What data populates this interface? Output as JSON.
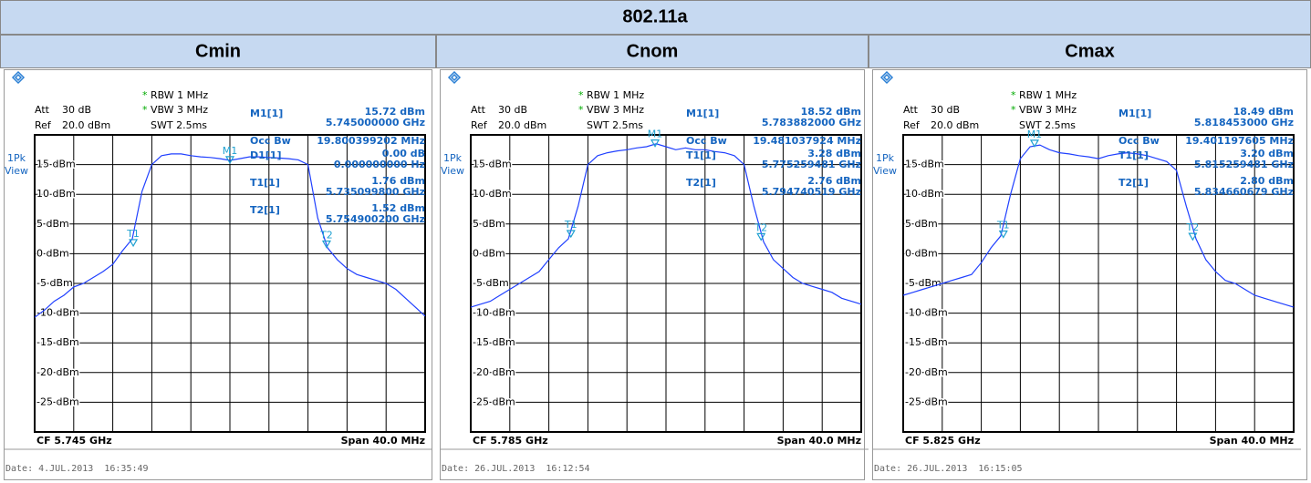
{
  "table": {
    "title": "802.11a",
    "columns": [
      "Cmin",
      "Cnom",
      "Cmax"
    ]
  },
  "chart_data": [
    {
      "type": "line",
      "trace_mode": [
        "1Pk",
        "View"
      ],
      "flag": "*",
      "att_label": "Att",
      "att": "30 dB",
      "ref_label": "Ref",
      "ref": "20.0 dBm",
      "rbw": "RBW 1 MHz",
      "vbw": "VBW 3 MHz",
      "swt": "SWT 2.5ms",
      "cf": "CF 5.745 GHz",
      "span": "Span 40.0 MHz",
      "date": "Date: 4.JUL.2013  16:35:49",
      "xlim": [
        5.725,
        5.765
      ],
      "ylim": [
        -30,
        20
      ],
      "grid": true,
      "color": "#2040ff",
      "yticks": [
        {
          "value": 15,
          "label": "15 dBm"
        },
        {
          "value": 10,
          "label": "10 dBm"
        },
        {
          "value": 5,
          "label": "5 dBm"
        },
        {
          "value": 0,
          "label": "0 dBm"
        },
        {
          "value": -5,
          "label": "-5 dBm"
        },
        {
          "value": -10,
          "label": "-10 dBm"
        },
        {
          "value": -15,
          "label": "-15 dBm"
        },
        {
          "value": -20,
          "label": "-20 dBm"
        },
        {
          "value": -25,
          "label": "-25 dBm"
        }
      ],
      "x": [
        5.725,
        5.726,
        5.727,
        5.728,
        5.729,
        5.73,
        5.731,
        5.732,
        5.733,
        5.734,
        5.735,
        5.736,
        5.737,
        5.738,
        5.739,
        5.74,
        5.741,
        5.742,
        5.743,
        5.744,
        5.745,
        5.746,
        5.747,
        5.748,
        5.749,
        5.75,
        5.751,
        5.752,
        5.753,
        5.754,
        5.755,
        5.756,
        5.757,
        5.758,
        5.759,
        5.76,
        5.761,
        5.762,
        5.763,
        5.764,
        5.765
      ],
      "values": [
        -10.7,
        -9.5,
        -8,
        -7,
        -5.6,
        -5,
        -4,
        -3,
        -1.8,
        0.5,
        2.5,
        10.5,
        15,
        16.5,
        16.8,
        16.8,
        16.5,
        16.3,
        16.2,
        16,
        15.7,
        16,
        16.3,
        16.3,
        16.2,
        16.1,
        16,
        15.8,
        15,
        6,
        1,
        -1,
        -2.5,
        -3.5,
        -4,
        -4.5,
        -5,
        -6,
        -7.5,
        -9,
        -10.5
      ],
      "markers": [
        {
          "label": "M1",
          "x": 5.745,
          "y": 15.72
        },
        {
          "label": "T1",
          "x": 5.7350998,
          "y": 1.76
        },
        {
          "label": "T2",
          "x": 5.7549002,
          "y": 1.52
        }
      ],
      "marker_table": [
        {
          "label": "M1[1]",
          "value": "15.72 dBm",
          "sub": "5.745000000 GHz"
        },
        {
          "label": "Occ Bw",
          "value": "19.800399202 MHz"
        },
        {
          "label": "D1[1]",
          "value": "0.00 dB",
          "sub": "0.000000000 Hz"
        },
        {
          "label": "T1[1]",
          "value": "1.76 dBm",
          "sub": "5.735099800 GHz"
        },
        {
          "label": "T2[1]",
          "value": "1.52 dBm",
          "sub": "5.754900200 GHz"
        }
      ]
    },
    {
      "type": "line",
      "trace_mode": [
        "1Pk",
        "View"
      ],
      "flag": "*",
      "att_label": "Att",
      "att": "30 dB",
      "ref_label": "Ref",
      "ref": "20.0 dBm",
      "rbw": "RBW 1 MHz",
      "vbw": "VBW 3 MHz",
      "swt": "SWT 2.5ms",
      "cf": "CF 5.785 GHz",
      "span": "Span 40.0 MHz",
      "date": "Date: 26.JUL.2013  16:12:54",
      "xlim": [
        5.765,
        5.805
      ],
      "ylim": [
        -30,
        20
      ],
      "grid": true,
      "color": "#2040ff",
      "yticks": [
        {
          "value": 15,
          "label": "15 dBm"
        },
        {
          "value": 10,
          "label": "10 dBm"
        },
        {
          "value": 5,
          "label": "5 dBm"
        },
        {
          "value": 0,
          "label": "0 dBm"
        },
        {
          "value": -5,
          "label": "-5 dBm"
        },
        {
          "value": -10,
          "label": "-10 dBm"
        },
        {
          "value": -15,
          "label": "-15 dBm"
        },
        {
          "value": -20,
          "label": "-20 dBm"
        },
        {
          "value": -25,
          "label": "-25 dBm"
        }
      ],
      "x": [
        5.765,
        5.766,
        5.767,
        5.768,
        5.769,
        5.77,
        5.771,
        5.772,
        5.773,
        5.774,
        5.775,
        5.776,
        5.777,
        5.778,
        5.779,
        5.78,
        5.781,
        5.782,
        5.783,
        5.784,
        5.785,
        5.786,
        5.787,
        5.788,
        5.789,
        5.79,
        5.791,
        5.792,
        5.793,
        5.794,
        5.795,
        5.796,
        5.797,
        5.798,
        5.799,
        5.8,
        5.801,
        5.802,
        5.803,
        5.804,
        5.805
      ],
      "values": [
        -9,
        -8.5,
        -8,
        -7,
        -6,
        -5,
        -4,
        -3,
        -1,
        1,
        2.5,
        8,
        15,
        16.5,
        17,
        17.3,
        17.5,
        17.8,
        18,
        18.5,
        18,
        17.5,
        17.8,
        17.5,
        17.5,
        17.2,
        17,
        16.5,
        15,
        8,
        2,
        -1,
        -2.5,
        -4,
        -5,
        -5.5,
        -6,
        -6.5,
        -7.5,
        -8,
        -8.5
      ],
      "markers": [
        {
          "label": "M1",
          "x": 5.783882,
          "y": 18.52
        },
        {
          "label": "T1",
          "x": 5.775259481,
          "y": 3.28
        },
        {
          "label": "T2",
          "x": 5.794740519,
          "y": 2.76
        }
      ],
      "marker_table": [
        {
          "label": "M1[1]",
          "value": "18.52 dBm",
          "sub": "5.783882000 GHz"
        },
        {
          "label": "Occ Bw",
          "value": "19.481037924 MHz"
        },
        {
          "label": "T1[1]",
          "value": "3.28 dBm",
          "sub": "5.775259481 GHz"
        },
        {
          "label": "T2[1]",
          "value": "2.76 dBm",
          "sub": "5.794740519 GHz"
        }
      ]
    },
    {
      "type": "line",
      "trace_mode": [
        "1Pk",
        "View"
      ],
      "flag": "*",
      "att_label": "Att",
      "att": "30 dB",
      "ref_label": "Ref",
      "ref": "20.0 dBm",
      "rbw": "RBW 1 MHz",
      "vbw": "VBW 3 MHz",
      "swt": "SWT 2.5ms",
      "cf": "CF 5.825 GHz",
      "span": "Span 40.0 MHz",
      "date": "Date: 26.JUL.2013  16:15:05",
      "xlim": [
        5.805,
        5.845
      ],
      "ylim": [
        -30,
        20
      ],
      "grid": true,
      "color": "#2040ff",
      "yticks": [
        {
          "value": 15,
          "label": "15 dBm"
        },
        {
          "value": 10,
          "label": "10 dBm"
        },
        {
          "value": 5,
          "label": "5 dBm"
        },
        {
          "value": 0,
          "label": "0 dBm"
        },
        {
          "value": -5,
          "label": "-5 dBm"
        },
        {
          "value": -10,
          "label": "-10 dBm"
        },
        {
          "value": -15,
          "label": "-15 dBm"
        },
        {
          "value": -20,
          "label": "-20 dBm"
        },
        {
          "value": -25,
          "label": "-25 dBm"
        }
      ],
      "x": [
        5.805,
        5.806,
        5.807,
        5.808,
        5.809,
        5.81,
        5.811,
        5.812,
        5.813,
        5.814,
        5.815,
        5.816,
        5.817,
        5.818,
        5.819,
        5.82,
        5.821,
        5.822,
        5.823,
        5.824,
        5.825,
        5.826,
        5.827,
        5.828,
        5.829,
        5.83,
        5.831,
        5.832,
        5.833,
        5.834,
        5.835,
        5.836,
        5.837,
        5.838,
        5.839,
        5.84,
        5.841,
        5.842,
        5.843,
        5.844,
        5.845
      ],
      "values": [
        -7,
        -6.5,
        -6,
        -5.5,
        -5,
        -4.5,
        -4,
        -3.5,
        -1.5,
        1,
        3,
        10,
        16,
        18,
        18.3,
        17.5,
        17,
        16.8,
        16.5,
        16.3,
        16,
        16.5,
        16.8,
        17,
        16.8,
        16.5,
        16,
        15.5,
        14,
        8,
        2.5,
        -1,
        -3,
        -4.5,
        -5,
        -6,
        -7,
        -7.5,
        -8,
        -8.5,
        -9
      ],
      "markers": [
        {
          "label": "M1",
          "x": 5.818453,
          "y": 18.49
        },
        {
          "label": "T1",
          "x": 5.815259481,
          "y": 3.2
        },
        {
          "label": "T2",
          "x": 5.834660679,
          "y": 2.8
        }
      ],
      "marker_table": [
        {
          "label": "M1[1]",
          "value": "18.49 dBm",
          "sub": "5.818453000 GHz"
        },
        {
          "label": "Occ Bw",
          "value": "19.401197605 MHz"
        },
        {
          "label": "T1[1]",
          "value": "3.20 dBm",
          "sub": "5.815259481 GHz"
        },
        {
          "label": "T2[1]",
          "value": "2.80 dBm",
          "sub": "5.834660679 GHz"
        }
      ]
    }
  ]
}
